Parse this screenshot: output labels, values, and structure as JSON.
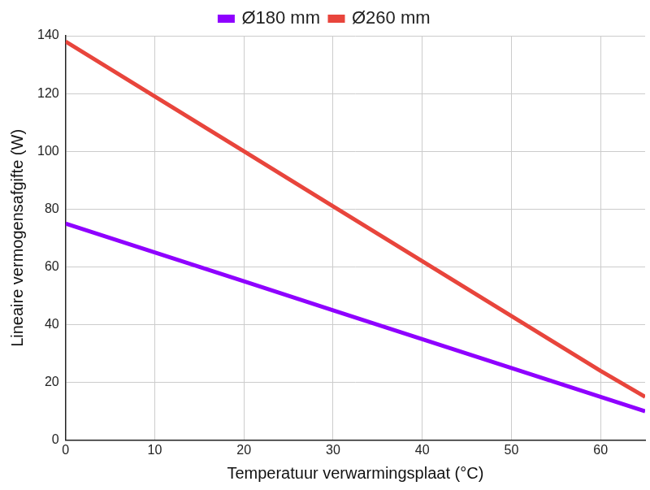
{
  "chart_data": {
    "type": "line",
    "x_label": "Temperatuur verwarmingsplaat (°C)",
    "y_label": "Lineaire vermogensafgifte (W)",
    "x": [
      0,
      10,
      20,
      30,
      40,
      50,
      60,
      65
    ],
    "series": [
      {
        "name": "Ø180 mm",
        "color": "#8f00ff",
        "values": [
          75,
          65,
          55,
          45,
          35,
          25,
          15,
          10
        ]
      },
      {
        "name": "Ø260 mm",
        "color": "#e8453c",
        "values": [
          138,
          119,
          100,
          81,
          62,
          43,
          24,
          15
        ]
      }
    ],
    "xlim": [
      0,
      65
    ],
    "xticks": [
      0,
      10,
      20,
      30,
      40,
      50,
      60
    ],
    "ylim": [
      0,
      140
    ],
    "yticks": [
      0,
      20,
      40,
      60,
      80,
      100,
      120,
      140
    ],
    "grid": true,
    "legend": "top"
  }
}
